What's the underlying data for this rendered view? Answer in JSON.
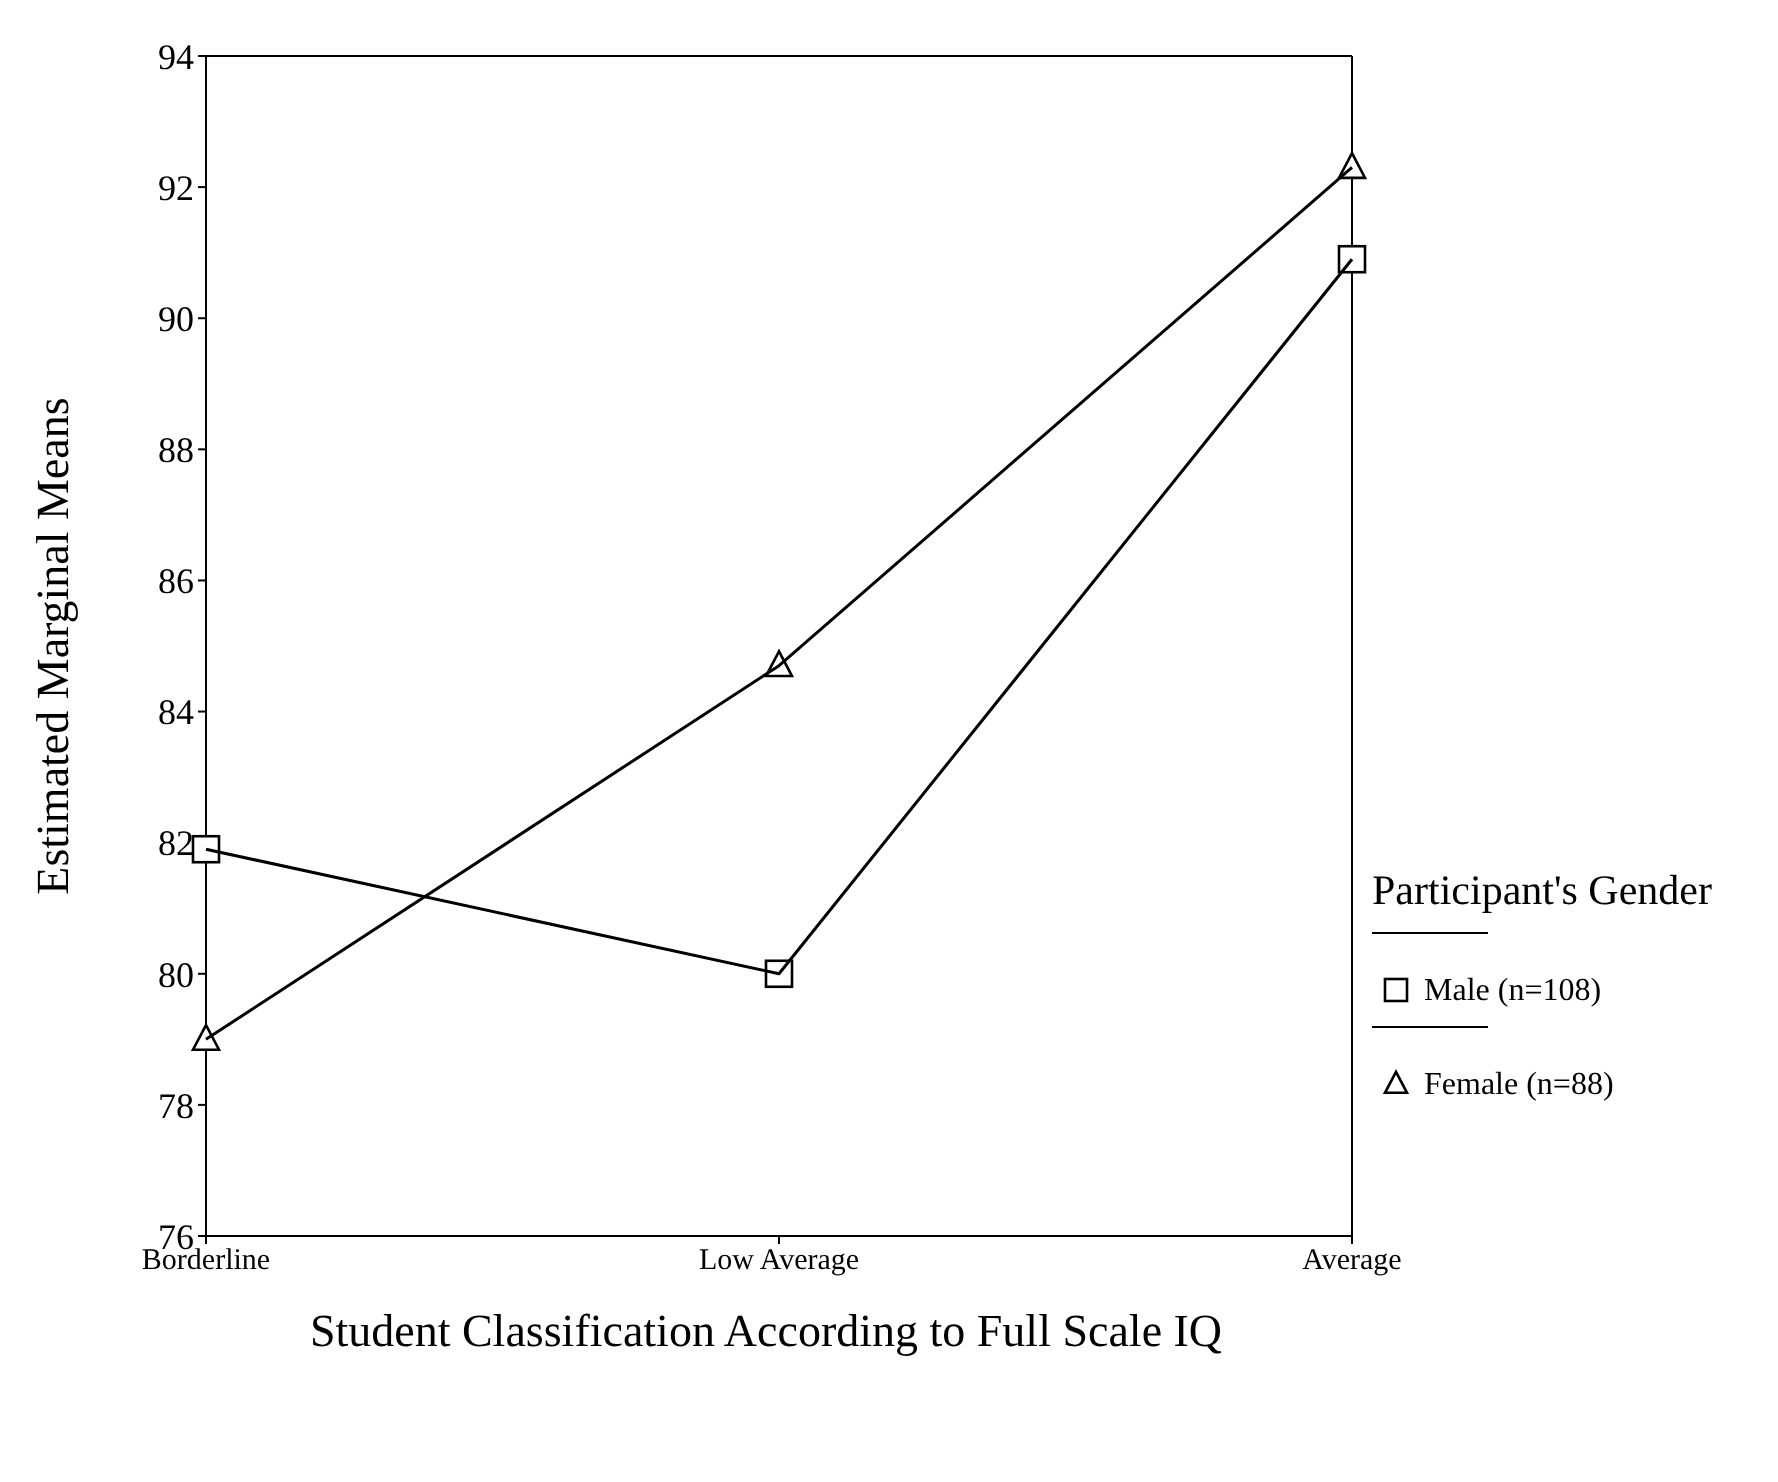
{
  "chart_data": {
    "type": "line",
    "xlabel": "Student Classification According to Full Scale IQ",
    "ylabel": "Estimated Marginal Means",
    "legend_title": "Participant's Gender",
    "categories": [
      "Borderline",
      "Low Average",
      "Average"
    ],
    "series": [
      {
        "name": "Male (n=108)",
        "color": "#000000",
        "marker": "square",
        "values": [
          81.9,
          80.0,
          90.9
        ]
      },
      {
        "name": "Female (n=88)",
        "color": "#000000",
        "marker": "triangle",
        "values": [
          79.0,
          84.7,
          92.3
        ]
      }
    ],
    "ylim": [
      76,
      94
    ],
    "yticks": [
      76,
      78,
      80,
      82,
      84,
      86,
      88,
      90,
      92,
      94
    ],
    "legend": "right",
    "line_style": "solid"
  }
}
